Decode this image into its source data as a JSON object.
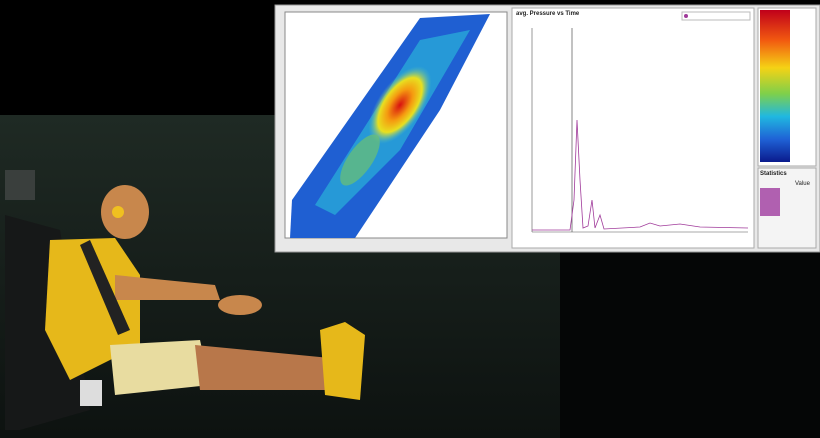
{
  "window": {
    "chart_title": "avg. Pressure vs Time",
    "statistics_title": "Statistics",
    "statistics_value_header": "Value"
  }
}
